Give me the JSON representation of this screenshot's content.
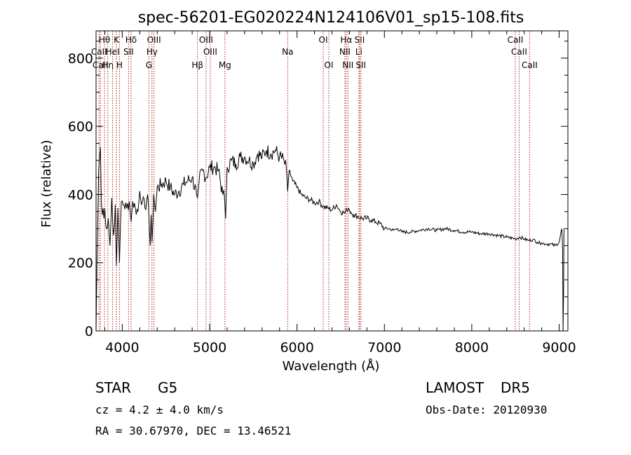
{
  "chart_data": {
    "type": "line",
    "title": "spec-56201-EG020224N124106V01_sp15-108.fits",
    "xlabel": "Wavelength (Å)",
    "ylabel": "Flux (relative)",
    "xlim": [
      3700,
      9100
    ],
    "ylim": [
      0,
      880
    ],
    "xticks": [
      4000,
      5000,
      6000,
      7000,
      8000,
      9000
    ],
    "yticks": [
      0,
      200,
      400,
      600,
      800
    ],
    "grid": false,
    "series": [
      {
        "x": [
          3700,
          3710,
          3730,
          3750,
          3760,
          3770,
          3780,
          3790,
          3800,
          3820,
          3840,
          3860,
          3880,
          3890,
          3900,
          3920,
          3933,
          3950,
          3968,
          3990,
          4020,
          4050,
          4080,
          4101,
          4120,
          4150,
          4180,
          4200,
          4230,
          4260,
          4290,
          4310,
          4320,
          4330,
          4340,
          4360,
          4380,
          4400,
          4450,
          4500,
          4550,
          4600,
          4650,
          4700,
          4750,
          4800,
          4850,
          4861,
          4880,
          4920,
          4960,
          5000,
          5050,
          5100,
          5150,
          5170,
          5183,
          5200,
          5250,
          5300,
          5350,
          5400,
          5450,
          5500,
          5550,
          5600,
          5650,
          5700,
          5750,
          5800,
          5850,
          5880,
          5893,
          5910,
          5950,
          6000,
          6050,
          6100,
          6150,
          6200,
          6250,
          6300,
          6350,
          6400,
          6450,
          6500,
          6550,
          6563,
          6580,
          6600,
          6650,
          6700,
          6750,
          6800,
          6850,
          6900,
          6950,
          7000,
          7050,
          7100,
          7150,
          7200,
          7300,
          7400,
          7500,
          7600,
          7700,
          7800,
          7900,
          8000,
          8100,
          8200,
          8300,
          8400,
          8500,
          8550,
          8600,
          8650,
          8700,
          8750,
          8800,
          8850,
          8900,
          8950,
          9000,
          9030,
          9040,
          9045,
          9050,
          9055
        ],
        "y": [
          0,
          180,
          470,
          540,
          380,
          340,
          360,
          330,
          360,
          300,
          330,
          250,
          390,
          320,
          280,
          370,
          190,
          360,
          200,
          380,
          370,
          360,
          380,
          320,
          380,
          360,
          350,
          410,
          380,
          360,
          400,
          300,
          250,
          340,
          260,
          400,
          350,
          420,
          430,
          440,
          420,
          400,
          410,
          430,
          440,
          450,
          400,
          390,
          440,
          470,
          450,
          480,
          480,
          470,
          400,
          390,
          330,
          480,
          500,
          490,
          510,
          510,
          500,
          490,
          520,
          510,
          530,
          520,
          530,
          510,
          500,
          470,
          410,
          470,
          440,
          420,
          400,
          390,
          385,
          375,
          380,
          365,
          360,
          355,
          370,
          350,
          345,
          360,
          350,
          355,
          340,
          335,
          330,
          330,
          325,
          320,
          315,
          300,
          300,
          295,
          300,
          290,
          290,
          295,
          300,
          295,
          300,
          295,
          290,
          290,
          285,
          285,
          280,
          275,
          270,
          275,
          270,
          265,
          268,
          260,
          258,
          255,
          255,
          250,
          260,
          300,
          240,
          0,
          110,
          300
        ]
      }
    ],
    "spectral_lines": [
      {
        "label": "Hθ",
        "x": 3797,
        "row": 1
      },
      {
        "label": "CaII",
        "x": 3734,
        "row": 2
      },
      {
        "label": "CaII",
        "x": 3750,
        "row": 3
      },
      {
        "label": "Hη",
        "x": 3835,
        "row": 3
      },
      {
        "label": "K",
        "x": 3933,
        "row": 1
      },
      {
        "label": "HeI",
        "x": 3889,
        "row": 2
      },
      {
        "label": "H",
        "x": 3968,
        "row": 3
      },
      {
        "label": "Hδ",
        "x": 4101,
        "row": 1
      },
      {
        "label": "SII",
        "x": 4072,
        "row": 2
      },
      {
        "label": "OIII",
        "x": 4363,
        "row": 1
      },
      {
        "label": "Hγ",
        "x": 4340,
        "row": 2
      },
      {
        "label": "G",
        "x": 4305,
        "row": 3
      },
      {
        "label": "OIII",
        "x": 4959,
        "row": 1
      },
      {
        "label": "OIII",
        "x": 5007,
        "row": 2
      },
      {
        "label": "Hβ",
        "x": 4861,
        "row": 3
      },
      {
        "label": "Mg",
        "x": 5175,
        "row": 3
      },
      {
        "label": "Na",
        "x": 5893,
        "row": 2
      },
      {
        "label": "OI",
        "x": 6300,
        "row": 1
      },
      {
        "label": "OI",
        "x": 6364,
        "row": 3
      },
      {
        "label": "Hα",
        "x": 6563,
        "row": 1
      },
      {
        "label": "SII",
        "x": 6716,
        "row": 1
      },
      {
        "label": "NII",
        "x": 6548,
        "row": 2
      },
      {
        "label": "Li",
        "x": 6708,
        "row": 2
      },
      {
        "label": "NII",
        "x": 6583,
        "row": 3
      },
      {
        "label": "SII",
        "x": 6731,
        "row": 3
      },
      {
        "label": "CaII",
        "x": 8498,
        "row": 1
      },
      {
        "label": "CaII",
        "x": 8542,
        "row": 2
      },
      {
        "label": "CaII",
        "x": 8662,
        "row": 3
      }
    ]
  },
  "info": {
    "class_label": "STAR",
    "subclass": "G5",
    "survey": "LAMOST",
    "release": "DR5",
    "cz": "cz = 4.2 ± 4.0 km/s",
    "obs_date": "Obs-Date: 20120930",
    "coords": "RA =  30.67970, DEC =  13.46521"
  }
}
